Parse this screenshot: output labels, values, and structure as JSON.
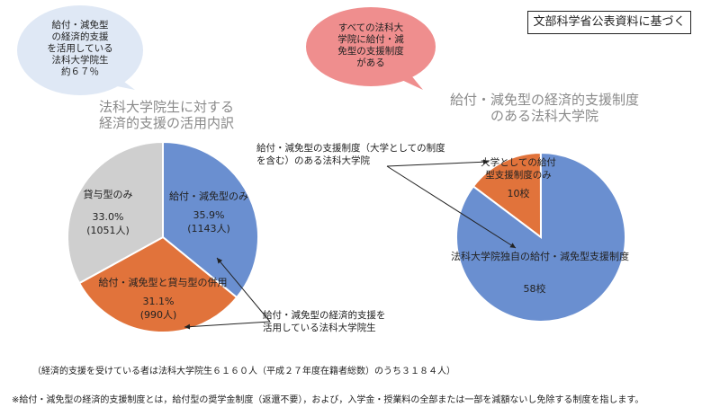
{
  "source_box": "文部科学省公表資料に基づく",
  "bubble_left": "給付・減免型\nの経済的支援\nを活用している\n法科大学院生\n約６７％",
  "bubble_right": "すべての法科大\n学院に給付・減\n免型の支援制度\nがある",
  "colors": {
    "blue": "#6a8fd0",
    "orange": "#e1733b",
    "gray": "#cfcfcf",
    "bubble_left": "#dfe8f5",
    "bubble_right": "#ef8e8e"
  },
  "callout_left": "給付・減免型の経済的支援を\n活用している法科大学院生",
  "callout_right": "給付・減免型の支援制度（大学としての制度\nを含む）のある法科大学院",
  "note_bottom": "（経済的支援を受けている者は法科大学院生６１６０人（平成２７年度在籍者総数）のうち３１８４人）",
  "footnote": "※給付・減免型の経済的支援制度とは，給付型の奨学金制度（返還不要），および，入学金・授業料の全部または一部を減額ないし免除する制度を指します。",
  "chart_data": [
    {
      "type": "pie",
      "title": "法科大学院生に対する\n経済的支援の活用内訳",
      "slices": [
        {
          "label": "給付・減免型のみ",
          "percent_text": "35.9%",
          "count_text": "(1143人)",
          "value": 1143,
          "color": "#6a8fd0"
        },
        {
          "label": "給付・減免型と貸与型の併用",
          "percent_text": "31.1%",
          "count_text": "(990人)",
          "value": 990,
          "color": "#e1733b"
        },
        {
          "label": "貸与型のみ",
          "percent_text": "33.0%",
          "count_text": "(1051人)",
          "value": 1051,
          "color": "#cfcfcf"
        }
      ]
    },
    {
      "type": "pie",
      "title": "給付・減免型の経済的支援制度\nのある法科大学院",
      "slices": [
        {
          "label": "大学としての給付\n型支援制度のみ",
          "count_text": "10校",
          "value": 10,
          "color": "#e1733b"
        },
        {
          "label": "法科大学院独自の給付・減免型支援制度",
          "count_text": "58校",
          "value": 58,
          "color": "#6a8fd0"
        }
      ]
    }
  ]
}
